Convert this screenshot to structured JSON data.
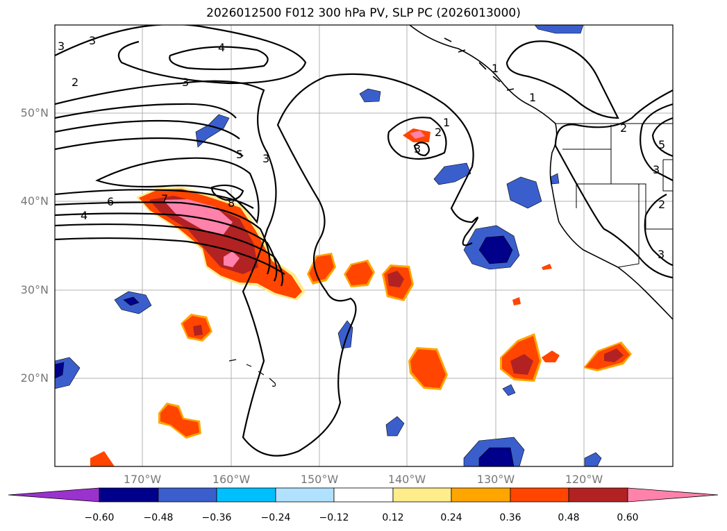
{
  "title": "2026012500 F012 300 hPa PV, SLP PC (2026013000)",
  "lat_ticks": [
    "50°N",
    "40°N",
    "30°N",
    "20°N"
  ],
  "lon_ticks": [
    "170°W",
    "160°W",
    "150°W",
    "140°W",
    "130°W",
    "120°W"
  ],
  "colorbar": {
    "labels": [
      "−0.60",
      "−0.48",
      "−0.36",
      "−0.24",
      "−0.12",
      "0.12",
      "0.24",
      "0.36",
      "0.48",
      "0.60"
    ],
    "colors": [
      "#9a32cd",
      "#00008b",
      "#3a5fcd",
      "#00bfff",
      "#b0e2ff",
      "#ffffff",
      "#ffec8b",
      "#ffa500",
      "#ff4500",
      "#b22222",
      "#ff82ab"
    ],
    "extend": "both"
  },
  "contour_labels": [
    "3",
    "3",
    "2",
    "4",
    "3",
    "5",
    "3",
    "6",
    "7",
    "8",
    "4",
    "1",
    "2",
    "3",
    "1",
    "1",
    "2",
    "5",
    "3",
    "2",
    "3"
  ]
}
